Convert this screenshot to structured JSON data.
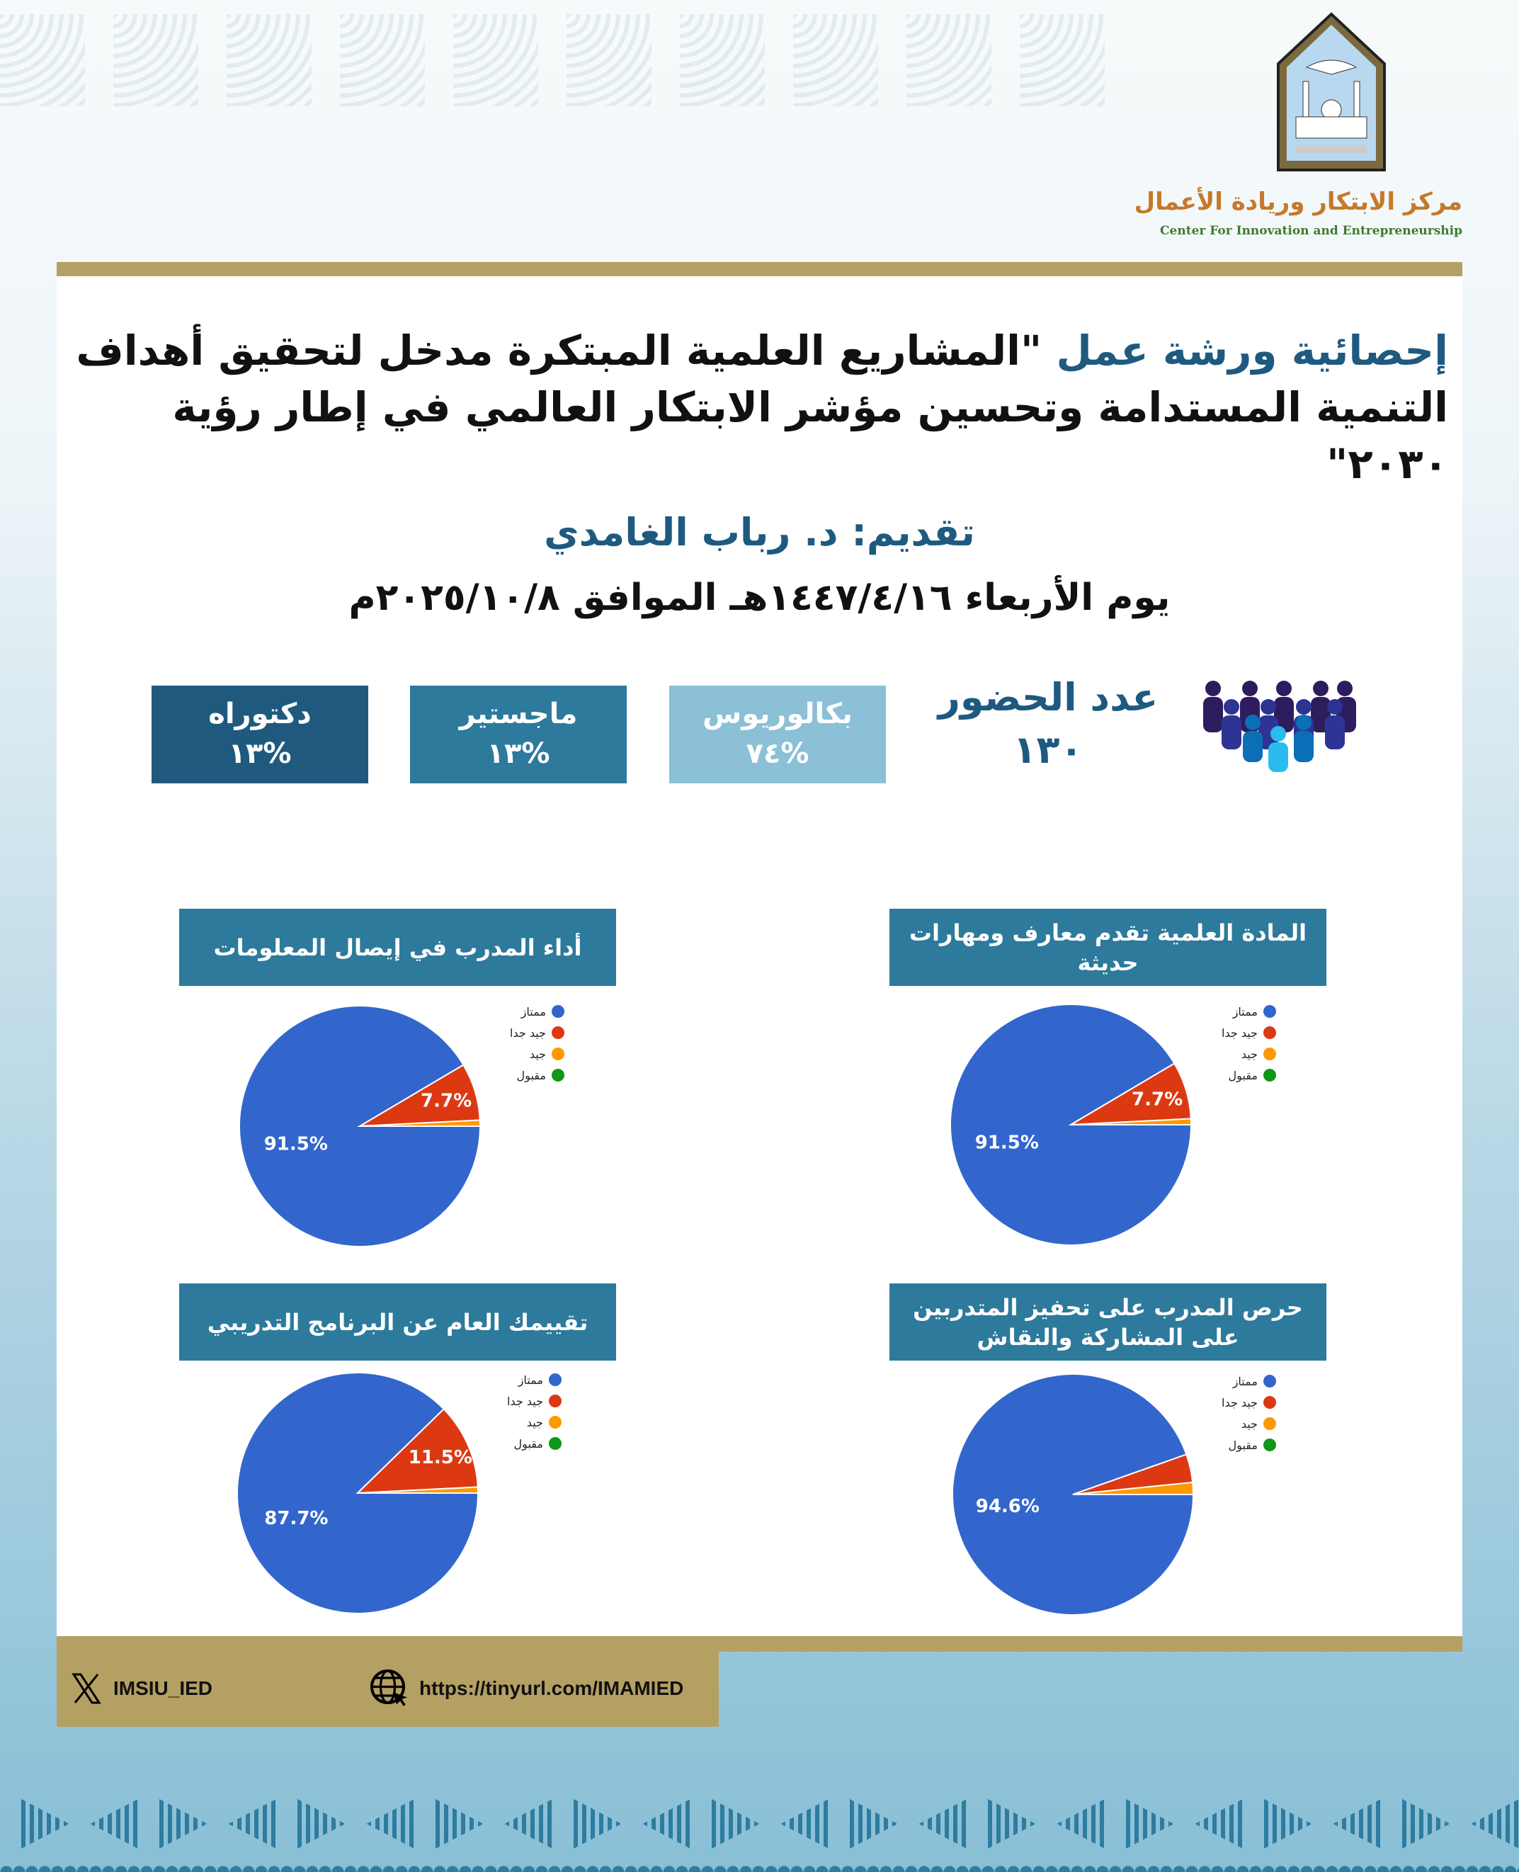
{
  "header": {
    "org_ar": "مركز الابتكار وريادة الأعمال",
    "org_en": "Center For Innovation and Entrepreneurship",
    "logo_text": "الإمام - جامعة الإمام محمد بن سعود الإسلامية - Imam Mohammad Ibn Saud Islamic University - 1974"
  },
  "title": {
    "prefix": "إحصائية ورشة عمل",
    "quote": "\"المشاريع العلمية المبتكرة مدخل لتحقيق أهداف التنمية المستدامة وتحسين مؤشر الابتكار العالمي في إطار رؤية ٢٠٣٠\""
  },
  "presenter": "تقديم: د. رباب الغامدي",
  "date": "يوم الأربعاء ١٤٤٧/٤/١٦هـ الموافق ٢٠٢٥/١٠/٨م",
  "attendance": {
    "label": "عدد الحضور",
    "count": "١٣٠"
  },
  "degrees": [
    {
      "label": "بكالوريوس",
      "value": "%٧٤",
      "color": "#8bc0d6"
    },
    {
      "label": "ماجستير",
      "value": "%١٣",
      "color": "#2d7a9c"
    },
    {
      "label": "دكتوراه",
      "value": "%١٣",
      "color": "#1f5a7e"
    }
  ],
  "legend": [
    "ممتاز",
    "جيد جدا",
    "جيد",
    "مقبول"
  ],
  "colors": [
    "#3366cc",
    "#dc3912",
    "#ff9900",
    "#109618"
  ],
  "chart_data": [
    {
      "type": "pie",
      "title": "المادة العلمية تقدم معارف ومهارات حديثة",
      "categories": [
        "ممتاز",
        "جيد جدا",
        "جيد",
        "مقبول"
      ],
      "values": [
        91.5,
        7.7,
        0.8,
        0
      ],
      "labels": [
        "91.5%",
        "7.7%",
        "",
        ""
      ]
    },
    {
      "type": "pie",
      "title": "أداء المدرب في إيصال المعلومات",
      "categories": [
        "ممتاز",
        "جيد جدا",
        "جيد",
        "مقبول"
      ],
      "values": [
        91.5,
        7.7,
        0.8,
        0
      ],
      "labels": [
        "91.5%",
        "7.7%",
        "",
        ""
      ]
    },
    {
      "type": "pie",
      "title": "حرص المدرب على تحفيز المتدربين على المشاركة والنقاش",
      "categories": [
        "ممتاز",
        "جيد جدا",
        "جيد",
        "مقبول"
      ],
      "values": [
        94.6,
        3.8,
        1.6,
        0
      ],
      "labels": [
        "94.6%",
        "",
        "",
        ""
      ]
    },
    {
      "type": "pie",
      "title": "تقييمك العام عن البرنامج التدريبي",
      "categories": [
        "ممتاز",
        "جيد جدا",
        "جيد",
        "مقبول"
      ],
      "values": [
        87.7,
        11.5,
        0.8,
        0
      ],
      "labels": [
        "87.7%",
        "11.5%",
        "",
        ""
      ]
    }
  ],
  "footer": {
    "twitter": "IMSIU_IED",
    "website": "https://tinyurl.com/IMAMIED"
  }
}
